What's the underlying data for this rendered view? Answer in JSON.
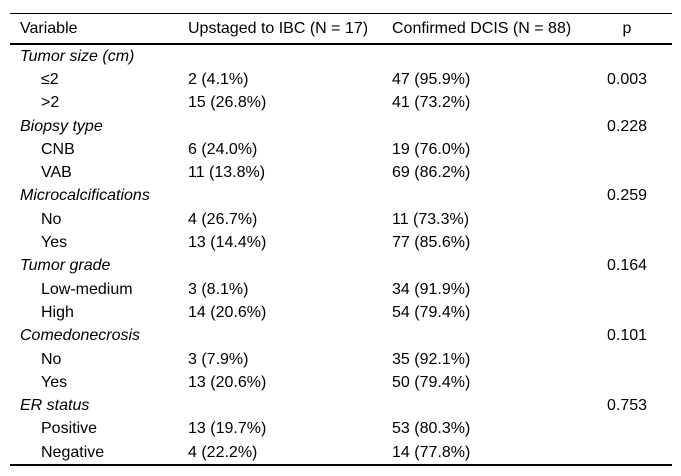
{
  "table": {
    "columns": [
      "Variable",
      "Upstaged to IBC (N = 17)",
      "Confirmed DCIS (N = 88)",
      "p"
    ],
    "rows": [
      {
        "type": "group",
        "label": "Tumor size (cm)",
        "ibc": "",
        "dcis": "",
        "p": ""
      },
      {
        "type": "item",
        "label": "≤2",
        "ibc": "2 (4.1%)",
        "dcis": "47 (95.9%)",
        "p": "0.003"
      },
      {
        "type": "item",
        "label": ">2",
        "ibc": "15 (26.8%)",
        "dcis": "41 (73.2%)",
        "p": ""
      },
      {
        "type": "group",
        "label": "Biopsy type",
        "ibc": "",
        "dcis": "",
        "p": "0.228"
      },
      {
        "type": "item",
        "label": "CNB",
        "ibc": "6 (24.0%)",
        "dcis": "19 (76.0%)",
        "p": ""
      },
      {
        "type": "item",
        "label": "VAB",
        "ibc": "11 (13.8%)",
        "dcis": "69 (86.2%)",
        "p": ""
      },
      {
        "type": "group",
        "label": "Microcalcifications",
        "ibc": "",
        "dcis": "",
        "p": "0.259"
      },
      {
        "type": "item",
        "label": "No",
        "ibc": "4 (26.7%)",
        "dcis": "11 (73.3%)",
        "p": ""
      },
      {
        "type": "item",
        "label": "Yes",
        "ibc": "13 (14.4%)",
        "dcis": "77 (85.6%)",
        "p": ""
      },
      {
        "type": "group",
        "label": "Tumor grade",
        "ibc": "",
        "dcis": "",
        "p": "0.164"
      },
      {
        "type": "item",
        "label": "Low-medium",
        "ibc": "3 (8.1%)",
        "dcis": "34 (91.9%)",
        "p": ""
      },
      {
        "type": "item",
        "label": "High",
        "ibc": "14 (20.6%)",
        "dcis": "54 (79.4%)",
        "p": ""
      },
      {
        "type": "group",
        "label": "Comedonecrosis",
        "ibc": "",
        "dcis": "",
        "p": "0.101"
      },
      {
        "type": "item",
        "label": "No",
        "ibc": "3 (7.9%)",
        "dcis": "35 (92.1%)",
        "p": ""
      },
      {
        "type": "item",
        "label": "Yes",
        "ibc": "13 (20.6%)",
        "dcis": "50 (79.4%)",
        "p": ""
      },
      {
        "type": "group",
        "label": "ER status",
        "ibc": "",
        "dcis": "",
        "p": "0.753"
      },
      {
        "type": "item",
        "label": "Positive",
        "ibc": "13 (19.7%)",
        "dcis": "53 (80.3%)",
        "p": ""
      },
      {
        "type": "item",
        "label": "Negative",
        "ibc": "4 (22.2%)",
        "dcis": "14 (77.8%)",
        "p": ""
      }
    ]
  }
}
